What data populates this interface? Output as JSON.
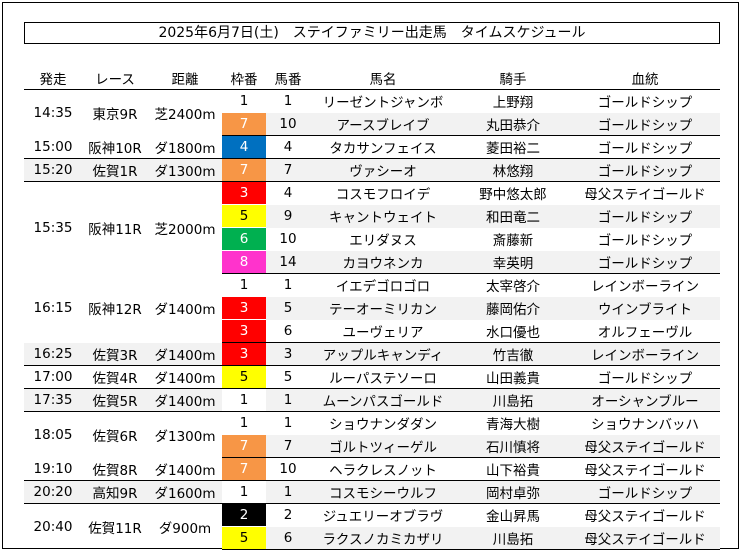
{
  "title": "2025年6月7日(土)　ステイファミリー出走馬　タイムスケジュール",
  "headers": {
    "start": "発走",
    "race": "レース",
    "distance": "距離",
    "gate": "枠番",
    "number": "馬番",
    "horse": "馬名",
    "jockey": "騎手",
    "pedigree": "血統"
  },
  "gate_colors": {
    "1": "#ffffff",
    "2": "#000000",
    "3": "#ff0000",
    "4": "#0070c0",
    "5": "#ffff00",
    "6": "#00b050",
    "7": "#f79646",
    "8": "#ff33cc"
  },
  "races": [
    {
      "time": "14:35",
      "race": "東京9R",
      "distance": "芝2400m",
      "entries": [
        {
          "gate": "1",
          "number": "1",
          "horse": "リーゼントジャンボ",
          "jockey": "上野翔",
          "pedigree": "ゴールドシップ"
        },
        {
          "gate": "7",
          "number": "10",
          "horse": "アースブレイブ",
          "jockey": "丸田恭介",
          "pedigree": "ゴールドシップ"
        }
      ]
    },
    {
      "time": "15:00",
      "race": "阪神10R",
      "distance": "ダ1800m",
      "entries": [
        {
          "gate": "4",
          "number": "4",
          "horse": "タカサンフェイス",
          "jockey": "菱田裕二",
          "pedigree": "ゴールドシップ"
        }
      ]
    },
    {
      "time": "15:20",
      "race": "佐賀1R",
      "distance": "ダ1300m",
      "entries": [
        {
          "gate": "7",
          "number": "7",
          "horse": "ヴァシーオ",
          "jockey": "林悠翔",
          "pedigree": "ゴールドシップ"
        }
      ]
    },
    {
      "time": "15:35",
      "race": "阪神11R",
      "distance": "芝2000m",
      "entries": [
        {
          "gate": "3",
          "number": "4",
          "horse": "コスモフロイデ",
          "jockey": "野中悠太郎",
          "pedigree": "母父ステイゴールド"
        },
        {
          "gate": "5",
          "number": "9",
          "horse": "キャントウェイト",
          "jockey": "和田竜二",
          "pedigree": "ゴールドシップ"
        },
        {
          "gate": "6",
          "number": "10",
          "horse": "エリダヌス",
          "jockey": "斎藤新",
          "pedigree": "ゴールドシップ"
        },
        {
          "gate": "8",
          "number": "14",
          "horse": "カヨウネンカ",
          "jockey": "幸英明",
          "pedigree": "ゴールドシップ"
        }
      ]
    },
    {
      "time": "16:15",
      "race": "阪神12R",
      "distance": "ダ1400m",
      "entries": [
        {
          "gate": "1",
          "number": "1",
          "horse": "イエデゴロゴロ",
          "jockey": "太宰啓介",
          "pedigree": "レインボーライン"
        },
        {
          "gate": "3",
          "number": "5",
          "horse": "テーオーミリカン",
          "jockey": "藤岡佑介",
          "pedigree": "ウインブライト"
        },
        {
          "gate": "3",
          "number": "6",
          "horse": "ユーヴェリア",
          "jockey": "水口優也",
          "pedigree": "オルフェーヴル"
        }
      ]
    },
    {
      "time": "16:25",
      "race": "佐賀3R",
      "distance": "ダ1400m",
      "entries": [
        {
          "gate": "3",
          "number": "3",
          "horse": "アップルキャンディ",
          "jockey": "竹吉徹",
          "pedigree": "レインボーライン"
        }
      ]
    },
    {
      "time": "17:00",
      "race": "佐賀4R",
      "distance": "ダ1400m",
      "entries": [
        {
          "gate": "5",
          "number": "5",
          "horse": "ルーパステソーロ",
          "jockey": "山田義貴",
          "pedigree": "ゴールドシップ"
        }
      ]
    },
    {
      "time": "17:35",
      "race": "佐賀5R",
      "distance": "ダ1400m",
      "entries": [
        {
          "gate": "1",
          "number": "1",
          "horse": "ムーンパスゴールド",
          "jockey": "川島拓",
          "pedigree": "オーシャンブルー"
        }
      ]
    },
    {
      "time": "18:05",
      "race": "佐賀6R",
      "distance": "ダ1300m",
      "entries": [
        {
          "gate": "1",
          "number": "1",
          "horse": "ショウナンダダン",
          "jockey": "青海大樹",
          "pedigree": "ショウナンバッハ"
        },
        {
          "gate": "7",
          "number": "7",
          "horse": "ゴルトツィーゲル",
          "jockey": "石川慎将",
          "pedigree": "母父ステイゴールド"
        }
      ]
    },
    {
      "time": "19:10",
      "race": "佐賀8R",
      "distance": "ダ1400m",
      "entries": [
        {
          "gate": "7",
          "number": "10",
          "horse": "ヘラクレスノット",
          "jockey": "山下裕貴",
          "pedigree": "母父ステイゴールド"
        }
      ]
    },
    {
      "time": "20:20",
      "race": "高知9R",
      "distance": "ダ1600m",
      "entries": [
        {
          "gate": "1",
          "number": "1",
          "horse": "コスモシーウルフ",
          "jockey": "岡村卓弥",
          "pedigree": "ゴールドシップ"
        }
      ]
    },
    {
      "time": "20:40",
      "race": "佐賀11R",
      "distance": "ダ900m",
      "entries": [
        {
          "gate": "2",
          "number": "2",
          "horse": "ジュエリーオブラヴ",
          "jockey": "金山昇馬",
          "pedigree": "母父ステイゴールド"
        },
        {
          "gate": "5",
          "number": "6",
          "horse": "ラクスノカミカザリ",
          "jockey": "川島拓",
          "pedigree": "母父ステイゴールド"
        }
      ]
    }
  ]
}
